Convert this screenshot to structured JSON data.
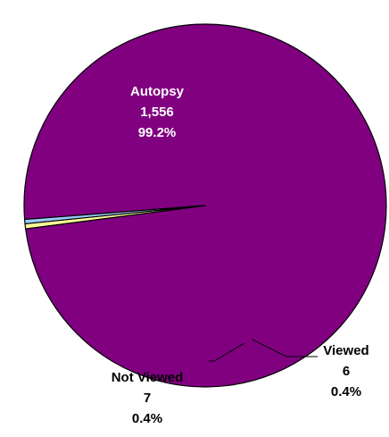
{
  "chart_data": {
    "type": "pie",
    "slices": [
      {
        "label": "Autopsy",
        "value": 1556,
        "value_text": "1,556",
        "percent_text": "99.2%",
        "color": "#800080",
        "label_color": "#ffffff"
      },
      {
        "label": "Not Viewed",
        "value": 7,
        "value_text": "7",
        "percent_text": "0.4%",
        "color": "#ffff99",
        "label_color": "#000000"
      },
      {
        "label": "Viewed",
        "value": 6,
        "value_text": "6",
        "percent_text": "0.4%",
        "color": "#99ccff",
        "label_color": "#000000"
      }
    ],
    "slice_border_color": "#000000",
    "legend": "none"
  }
}
